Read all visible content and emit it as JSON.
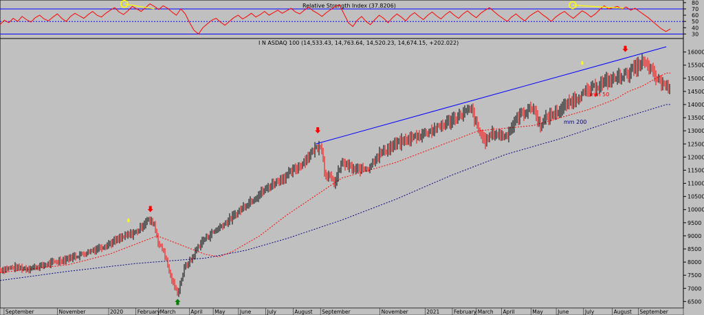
{
  "chart_data": [
    {
      "type": "line",
      "title": "Relative Strength Index (37.8206)",
      "yticks": [
        30,
        40,
        50,
        60,
        70,
        80
      ],
      "ylim": [
        25,
        82
      ],
      "reference_lines": [
        30,
        50,
        70
      ],
      "colors": {
        "rsi": "#ff0000",
        "reference": "#0000ff",
        "trend": "#ffff00"
      },
      "annotation_trends": [
        {
          "from": {
            "x": 0.182,
            "y": 78
          },
          "to": {
            "x": 0.226,
            "y": 70
          }
        },
        {
          "from": {
            "x": 0.838,
            "y": 76
          },
          "to": {
            "x": 0.913,
            "y": 71
          }
        }
      ],
      "annotation_circles": [
        {
          "x": 0.182,
          "y": 78
        },
        {
          "x": 0.838,
          "y": 76
        }
      ],
      "series": [
        {
          "values": [
            45,
            52,
            48,
            55,
            50,
            58,
            53,
            49,
            56,
            60,
            54,
            51,
            57,
            62,
            55,
            50,
            58,
            63,
            59,
            55,
            61,
            66,
            60,
            57,
            63,
            68,
            72,
            65,
            61,
            67,
            74,
            70,
            66,
            72,
            78,
            74,
            69,
            75,
            71,
            65,
            60,
            70,
            62,
            48,
            36,
            30,
            40,
            46,
            52,
            55,
            49,
            44,
            50,
            56,
            60,
            54,
            58,
            63,
            57,
            61,
            66,
            60,
            64,
            68,
            63,
            67,
            71,
            65,
            62,
            68,
            73,
            67,
            63,
            58,
            64,
            69,
            74,
            76,
            62,
            48,
            42,
            52,
            58,
            50,
            45,
            53,
            60,
            55,
            48,
            56,
            62,
            57,
            51,
            59,
            64,
            58,
            53,
            60,
            65,
            59,
            54,
            61,
            66,
            60,
            55,
            62,
            67,
            61,
            56,
            63,
            68,
            72,
            66,
            60,
            55,
            50,
            57,
            62,
            56,
            51,
            58,
            63,
            67,
            61,
            56,
            50,
            57,
            62,
            66,
            60,
            55,
            61,
            67,
            63,
            57,
            62,
            69,
            75,
            70,
            72,
            74,
            70,
            73,
            68,
            71,
            66,
            61,
            56,
            50,
            44,
            38,
            34,
            38
          ]
        }
      ]
    },
    {
      "type": "line",
      "title": "I N ASDAQ 100 (14,533.43, 14,763.64, 14,520.23, 14,674.15, +202.022)",
      "xlabels": [
        "September",
        "November",
        "2020",
        "February",
        "March",
        "April",
        "May",
        "June",
        "July",
        "August",
        "September",
        "November",
        "2021",
        "February",
        "March",
        "April",
        "May",
        "June",
        "July",
        "August",
        "September"
      ],
      "yticks": [
        6500,
        7000,
        7500,
        8000,
        8500,
        9000,
        9500,
        10000,
        10500,
        11000,
        11500,
        12000,
        12500,
        13000,
        13500,
        14000,
        14500,
        15000,
        15500,
        16000
      ],
      "ylim": [
        6300,
        16200
      ],
      "colors": {
        "price_up": "#000000",
        "price_down": "#ff0000",
        "ma50": "#ff0000",
        "ma200": "#000080",
        "trendline": "#0000ff",
        "arrow_down": "#ff0000",
        "arrow_up": "#008000",
        "arrow_small": "#ffff00"
      },
      "ma_labels": {
        "ma50": "mm 50",
        "ma200": "mm 200"
      },
      "series": [
        {
          "name": "INASDAQ 100",
          "x": [
            0,
            0.02,
            0.04,
            0.06,
            0.08,
            0.1,
            0.12,
            0.14,
            0.16,
            0.18,
            0.2,
            0.215,
            0.225,
            0.232,
            0.24,
            0.25,
            0.26,
            0.27,
            0.28,
            0.29,
            0.3,
            0.32,
            0.34,
            0.36,
            0.38,
            0.4,
            0.42,
            0.44,
            0.46,
            0.47,
            0.475,
            0.48,
            0.49,
            0.5,
            0.52,
            0.54,
            0.55,
            0.56,
            0.58,
            0.6,
            0.62,
            0.64,
            0.66,
            0.68,
            0.69,
            0.7,
            0.71,
            0.72,
            0.74,
            0.76,
            0.78,
            0.79,
            0.8,
            0.82,
            0.84,
            0.86,
            0.88,
            0.9,
            0.92,
            0.93,
            0.94,
            0.95,
            0.96,
            0.975
          ],
          "values": [
            7700,
            7800,
            7750,
            7850,
            8000,
            8150,
            8300,
            8500,
            8700,
            8950,
            9150,
            9600,
            9500,
            8700,
            8400,
            7400,
            6800,
            7800,
            8100,
            8600,
            8900,
            9300,
            9700,
            10200,
            10600,
            11000,
            11300,
            11700,
            12300,
            12500,
            11400,
            11300,
            11000,
            11800,
            11500,
            11600,
            12000,
            12200,
            12500,
            12700,
            12900,
            13100,
            13400,
            13700,
            13800,
            13000,
            12600,
            12900,
            12800,
            13600,
            13900,
            13200,
            13500,
            13800,
            14200,
            14500,
            14800,
            15000,
            15200,
            15400,
            15600,
            15400,
            15000,
            14700
          ]
        },
        {
          "name": "mm 50",
          "x": [
            0,
            0.1,
            0.16,
            0.2,
            0.23,
            0.26,
            0.28,
            0.3,
            0.32,
            0.34,
            0.38,
            0.42,
            0.46,
            0.5,
            0.54,
            0.58,
            0.62,
            0.66,
            0.7,
            0.74,
            0.78,
            0.82,
            0.86,
            0.88,
            0.9,
            0.92,
            0.94,
            0.96,
            0.975
          ],
          "values": [
            7600,
            7900,
            8300,
            8700,
            9000,
            8700,
            8500,
            8300,
            8200,
            8400,
            9000,
            9800,
            10500,
            11200,
            11500,
            11800,
            12200,
            12600,
            13000,
            13100,
            13200,
            13500,
            13800,
            14000,
            14200,
            14500,
            14700,
            15000,
            15200
          ]
        },
        {
          "name": "mm 200",
          "x": [
            0,
            0.1,
            0.2,
            0.3,
            0.36,
            0.42,
            0.5,
            0.58,
            0.66,
            0.74,
            0.82,
            0.9,
            0.975
          ],
          "values": [
            7300,
            7650,
            7950,
            8150,
            8450,
            8900,
            9600,
            10400,
            11300,
            12100,
            12700,
            13400,
            14000
          ]
        }
      ],
      "trendlines": [
        {
          "from": {
            "x": 0.462,
            "y": 12500
          },
          "to": {
            "x": 0.975,
            "y": 16200
          }
        }
      ],
      "arrows": [
        {
          "direction": "down",
          "x": 0.22,
          "y": 9900,
          "size": "large"
        },
        {
          "direction": "down",
          "x": 0.465,
          "y": 12900,
          "size": "large"
        },
        {
          "direction": "down",
          "x": 0.915,
          "y": 16000,
          "size": "large"
        },
        {
          "direction": "up",
          "x": 0.26,
          "y": 6600,
          "size": "large"
        },
        {
          "direction": "down",
          "x": 0.188,
          "y": 9500,
          "size": "small"
        },
        {
          "direction": "down",
          "x": 0.852,
          "y": 15500,
          "size": "small"
        }
      ]
    }
  ]
}
